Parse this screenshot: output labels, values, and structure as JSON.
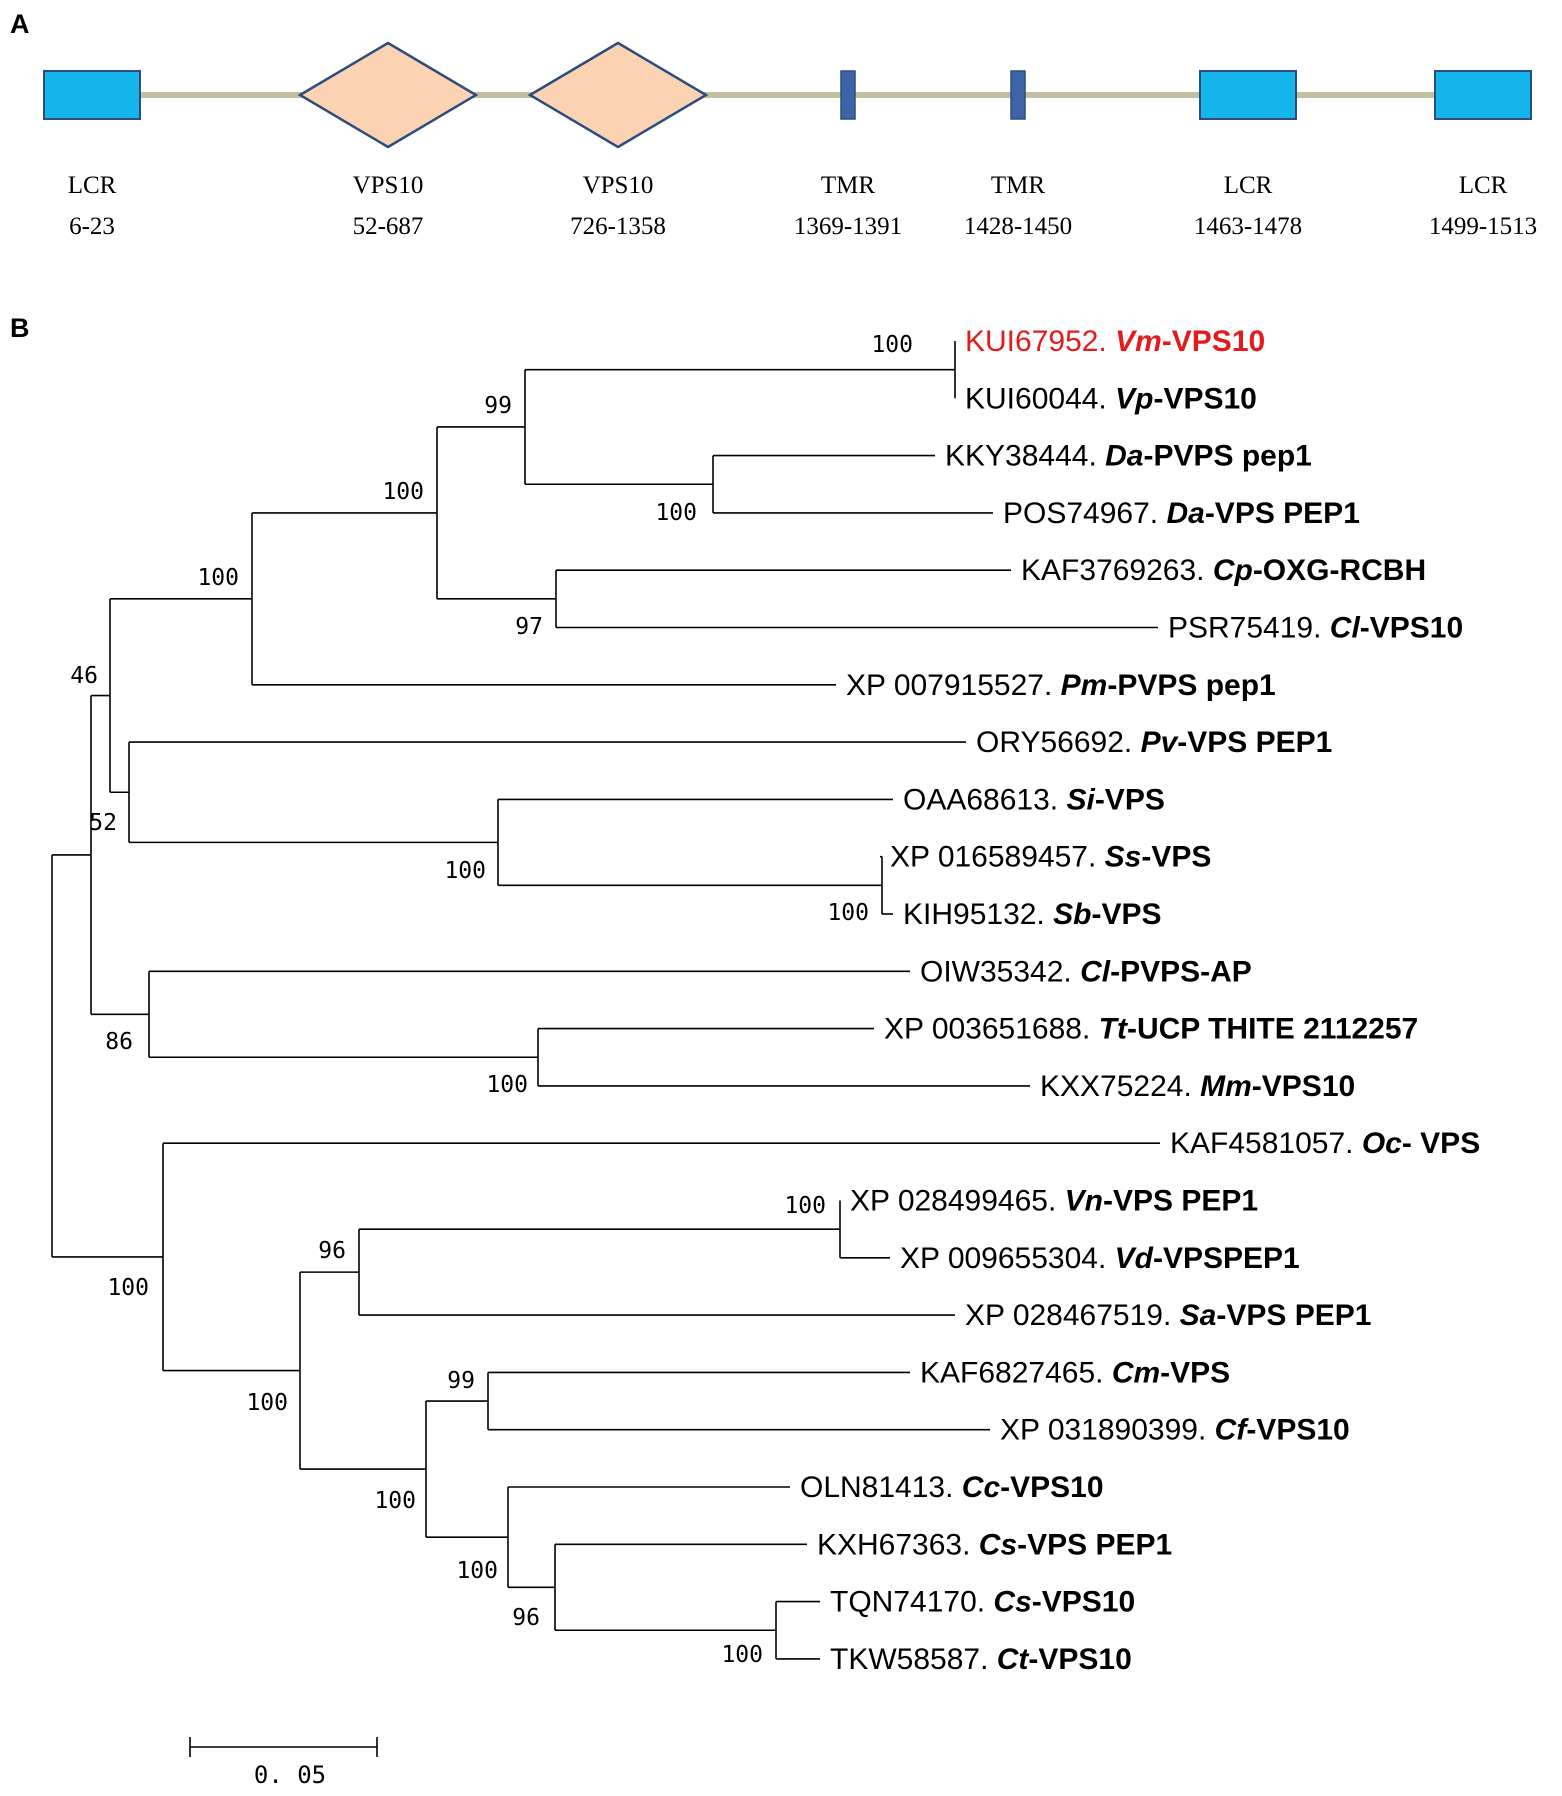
{
  "panels": {
    "a": "A",
    "b": "B"
  },
  "colors": {
    "backbone": "#c2bfa0",
    "lcr_fill": "#13b5ea",
    "vps10_fill": "#fbd3b3",
    "shape_stroke": "#2e4d7f",
    "tmr_fill": "#3c64a6",
    "highlight": "#e41a1c"
  },
  "domains": [
    {
      "type": "LCR",
      "range": "6-23"
    },
    {
      "type": "VPS10",
      "range": "52-687"
    },
    {
      "type": "VPS10",
      "range": "726-1358"
    },
    {
      "type": "TMR",
      "range": "1369-1391"
    },
    {
      "type": "TMR",
      "range": "1428-1450"
    },
    {
      "type": "LCR",
      "range": "1463-1478"
    },
    {
      "type": "LCR",
      "range": "1499-1513"
    }
  ],
  "tree": {
    "scale_bar_label": "0. 05",
    "leaves": [
      {
        "acc": "KUI67952.",
        "sp": "Vm",
        "desc": "-VPS10",
        "highlight": true
      },
      {
        "acc": "KUI60044.",
        "sp": "Vp",
        "desc": "-VPS10"
      },
      {
        "acc": "KKY38444.",
        "sp": "Da",
        "desc": "-PVPS pep1"
      },
      {
        "acc": "POS74967.",
        "sp": "Da",
        "desc": "-VPS PEP1"
      },
      {
        "acc": "KAF3769263.",
        "sp": "Cp",
        "desc": "-OXG-RCBH"
      },
      {
        "acc": "PSR75419.",
        "sp": "Cl",
        "desc": "-VPS10"
      },
      {
        "acc": "XP 007915527.",
        "sp": "Pm",
        "desc": "-PVPS pep1"
      },
      {
        "acc": "ORY56692.",
        "sp": "Pv",
        "desc": "-VPS PEP1"
      },
      {
        "acc": "OAA68613.",
        "sp": "Si",
        "desc": "-VPS"
      },
      {
        "acc": "XP 016589457.",
        "sp": "Ss",
        "desc": "-VPS"
      },
      {
        "acc": "KIH95132.",
        "sp": "Sb",
        "desc": "-VPS"
      },
      {
        "acc": "OIW35342.",
        "sp": "Cl",
        "desc": "-PVPS-AP"
      },
      {
        "acc": "XP 003651688.",
        "sp": "Tt",
        "desc": "-UCP THITE 2112257"
      },
      {
        "acc": "KXX75224.",
        "sp": "Mm",
        "desc": "-VPS10"
      },
      {
        "acc": "KAF4581057.",
        "sp": "Oc",
        "desc": "- VPS"
      },
      {
        "acc": "XP 028499465.",
        "sp": "Vn",
        "desc": "-VPS PEP1"
      },
      {
        "acc": "XP 009655304.",
        "sp": "Vd",
        "desc": "-VPSPEP1"
      },
      {
        "acc": "XP 028467519.",
        "sp": "Sa",
        "desc": "-VPS PEP1"
      },
      {
        "acc": "KAF6827465.",
        "sp": "Cm",
        "desc": "-VPS"
      },
      {
        "acc": "XP 031890399.",
        "sp": "Cf",
        "desc": "-VPS10"
      },
      {
        "acc": "OLN81413.",
        "sp": "Cc",
        "desc": "-VPS10"
      },
      {
        "acc": "KXH67363.",
        "sp": "Cs",
        "desc": "-VPS PEP1"
      },
      {
        "acc": "TQN74170.",
        "sp": "Cs",
        "desc": "-VPS10"
      },
      {
        "acc": "TKW58587.",
        "sp": "Ct",
        "desc": "-VPS10"
      }
    ],
    "bootstrap": [
      "100",
      "99",
      "100",
      "100",
      "100",
      "97",
      "46",
      "52",
      "100",
      "100",
      "86",
      "100",
      "100",
      "96",
      "100",
      "100",
      "99",
      "100",
      "100",
      "96",
      "100"
    ]
  }
}
